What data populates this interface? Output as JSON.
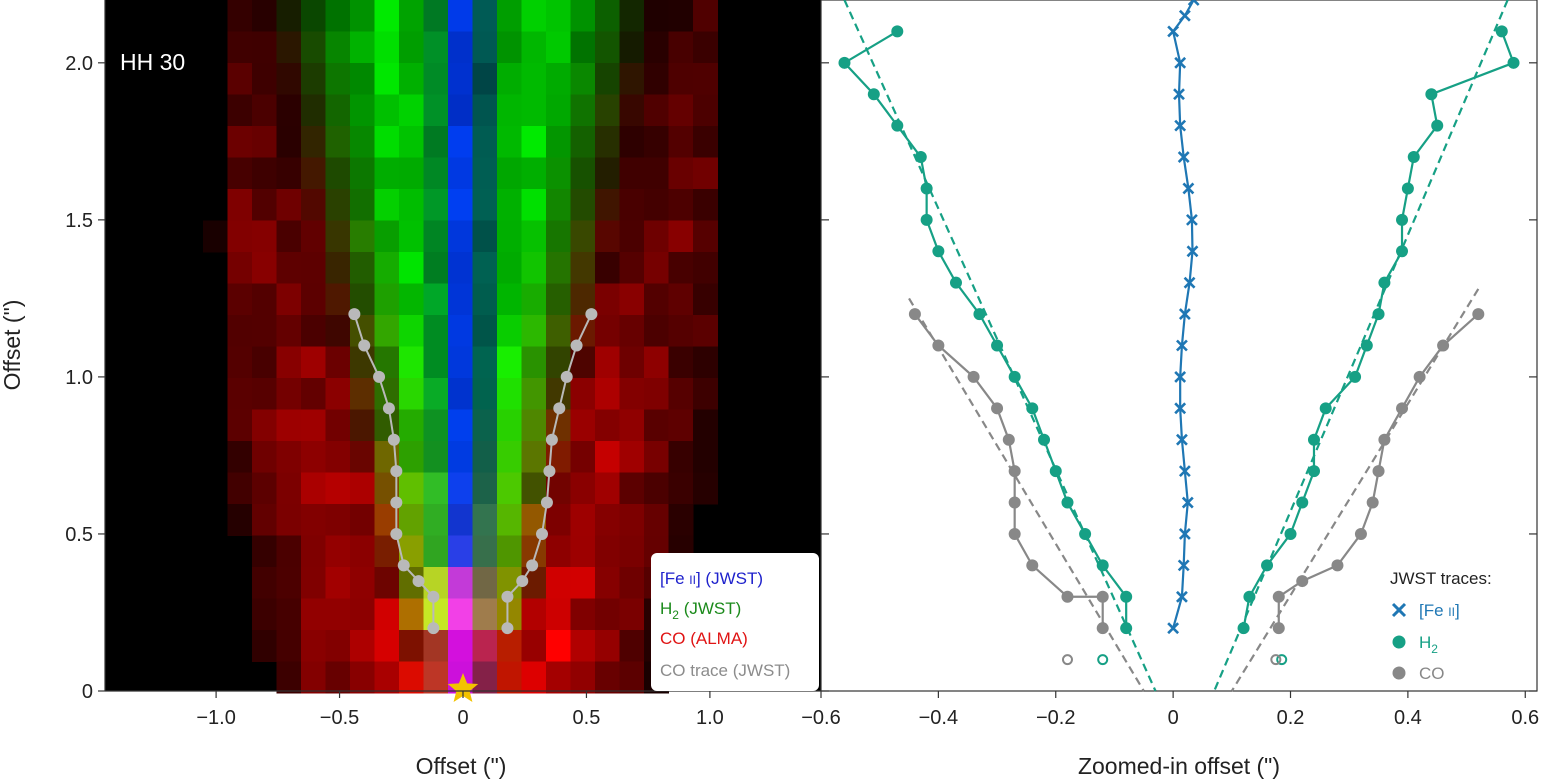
{
  "chart_data": [
    {
      "type": "heatmap",
      "panel": "left",
      "title": "HH 30",
      "xlabel": "Offset (\")",
      "ylabel": "Offset (\")",
      "xlim": [
        -1.45,
        1.45
      ],
      "ylim": [
        0,
        2.2
      ],
      "xticks": [
        -1.0,
        -0.5,
        0,
        0.5,
        1.0
      ],
      "xtick_labels": [
        "−1.0",
        "−0.5",
        "0",
        "0.5",
        "1.0"
      ],
      "yticks": [
        0,
        0.5,
        1.0,
        1.5,
        2.0
      ],
      "ytick_labels": [
        "0",
        "0.5",
        "1.0",
        "1.5",
        "2.0"
      ],
      "legend": {
        "placement": "bottom-right",
        "entries": [
          {
            "label": "[Fe ii] (JWST)",
            "color": "#1f22cc"
          },
          {
            "label": "H2 (JWST)",
            "color": "#1b8a1b"
          },
          {
            "label": "CO (ALMA)",
            "color": "#e01414"
          },
          {
            "label": "CO trace (JWST)",
            "color": "#8c8c8c"
          }
        ]
      },
      "series": [
        {
          "name": "CO trace (JWST)",
          "color": "#b9b9b9",
          "left_points": [
            [
              -0.44,
              1.2
            ],
            [
              -0.4,
              1.1
            ],
            [
              -0.34,
              1.0
            ],
            [
              -0.3,
              0.9
            ],
            [
              -0.28,
              0.8
            ],
            [
              -0.27,
              0.7
            ],
            [
              -0.27,
              0.6
            ],
            [
              -0.27,
              0.5
            ],
            [
              -0.24,
              0.4
            ],
            [
              -0.18,
              0.35
            ],
            [
              -0.12,
              0.3
            ],
            [
              -0.12,
              0.2
            ]
          ],
          "right_points": [
            [
              0.52,
              1.2
            ],
            [
              0.46,
              1.1
            ],
            [
              0.42,
              1.0
            ],
            [
              0.39,
              0.9
            ],
            [
              0.36,
              0.8
            ],
            [
              0.35,
              0.7
            ],
            [
              0.34,
              0.6
            ],
            [
              0.32,
              0.5
            ],
            [
              0.28,
              0.4
            ],
            [
              0.24,
              0.35
            ],
            [
              0.18,
              0.3
            ],
            [
              0.18,
              0.2
            ]
          ]
        }
      ],
      "star_marker": {
        "x": 0,
        "y": 0,
        "color": "#f2c200"
      }
    },
    {
      "type": "scatter",
      "panel": "right",
      "xlabel": "Zoomed-in offset (\")",
      "xlim": [
        -0.6,
        0.62
      ],
      "ylim": [
        0,
        2.2
      ],
      "xticks": [
        -0.6,
        -0.4,
        -0.2,
        0,
        0.2,
        0.4,
        0.6
      ],
      "xtick_labels": [
        "−0.6",
        "−0.4",
        "−0.2",
        "0",
        "0.2",
        "0.4",
        "0.6"
      ],
      "legend": {
        "title": "JWST traces:",
        "placement": "bottom-right",
        "entries": [
          {
            "label": "[Fe ii]",
            "marker": "x",
            "color": "#1f77b4"
          },
          {
            "label": "H2",
            "marker": "o",
            "color": "#16a085"
          },
          {
            "label": "CO",
            "marker": "o",
            "color": "#888888"
          }
        ]
      },
      "series": [
        {
          "name": "[Fe ii]",
          "color": "#1f77b4",
          "marker": "x",
          "points": [
            [
              0,
              0.2
            ],
            [
              0.015,
              0.3
            ],
            [
              0.018,
              0.4
            ],
            [
              0.02,
              0.5
            ],
            [
              0.025,
              0.6
            ],
            [
              0.02,
              0.7
            ],
            [
              0.015,
              0.8
            ],
            [
              0.012,
              0.9
            ],
            [
              0.012,
              1.0
            ],
            [
              0.015,
              1.1
            ],
            [
              0.02,
              1.2
            ],
            [
              0.028,
              1.3
            ],
            [
              0.033,
              1.4
            ],
            [
              0.032,
              1.5
            ],
            [
              0.026,
              1.6
            ],
            [
              0.018,
              1.7
            ],
            [
              0.012,
              1.8
            ],
            [
              0.01,
              1.9
            ],
            [
              0.012,
              2.0
            ],
            [
              0.0,
              2.1
            ],
            [
              0.02,
              2.15
            ],
            [
              0.035,
              2.2
            ]
          ]
        },
        {
          "name": "H2",
          "color": "#16a085",
          "marker": "o",
          "left_points": [
            [
              -0.47,
              2.1
            ],
            [
              -0.56,
              2.0
            ],
            [
              -0.51,
              1.9
            ],
            [
              -0.47,
              1.8
            ],
            [
              -0.43,
              1.7
            ],
            [
              -0.42,
              1.6
            ],
            [
              -0.42,
              1.5
            ],
            [
              -0.4,
              1.4
            ],
            [
              -0.37,
              1.3
            ],
            [
              -0.33,
              1.2
            ],
            [
              -0.3,
              1.1
            ],
            [
              -0.27,
              1.0
            ],
            [
              -0.24,
              0.9
            ],
            [
              -0.22,
              0.8
            ],
            [
              -0.2,
              0.7
            ],
            [
              -0.18,
              0.6
            ],
            [
              -0.15,
              0.5
            ],
            [
              -0.12,
              0.4
            ],
            [
              -0.08,
              0.3
            ],
            [
              -0.08,
              0.2
            ]
          ],
          "right_points": [
            [
              0.56,
              2.1
            ],
            [
              0.58,
              2.0
            ],
            [
              0.44,
              1.9
            ],
            [
              0.45,
              1.8
            ],
            [
              0.41,
              1.7
            ],
            [
              0.4,
              1.6
            ],
            [
              0.39,
              1.5
            ],
            [
              0.39,
              1.4
            ],
            [
              0.36,
              1.3
            ],
            [
              0.35,
              1.2
            ],
            [
              0.33,
              1.1
            ],
            [
              0.31,
              1.0
            ],
            [
              0.26,
              0.9
            ],
            [
              0.24,
              0.8
            ],
            [
              0.24,
              0.7
            ],
            [
              0.22,
              0.6
            ],
            [
              0.2,
              0.5
            ],
            [
              0.16,
              0.4
            ],
            [
              0.13,
              0.3
            ],
            [
              0.12,
              0.2
            ]
          ],
          "open_markers": [
            [
              -0.12,
              0.1
            ],
            [
              0.185,
              0.1
            ]
          ],
          "fits": [
            [
              [
                -0.56,
                2.2
              ],
              [
                -0.03,
                0.0
              ]
            ],
            [
              [
                0.57,
                2.2
              ],
              [
                0.07,
                0.0
              ]
            ]
          ]
        },
        {
          "name": "CO",
          "color": "#888888",
          "marker": "o",
          "left_points": [
            [
              -0.44,
              1.2
            ],
            [
              -0.4,
              1.1
            ],
            [
              -0.34,
              1.0
            ],
            [
              -0.3,
              0.9
            ],
            [
              -0.28,
              0.8
            ],
            [
              -0.27,
              0.7
            ],
            [
              -0.27,
              0.6
            ],
            [
              -0.27,
              0.5
            ],
            [
              -0.24,
              0.4
            ],
            [
              -0.18,
              0.3
            ],
            [
              -0.12,
              0.3
            ],
            [
              -0.12,
              0.2
            ]
          ],
          "right_points": [
            [
              0.52,
              1.2
            ],
            [
              0.46,
              1.1
            ],
            [
              0.42,
              1.0
            ],
            [
              0.39,
              0.9
            ],
            [
              0.36,
              0.8
            ],
            [
              0.35,
              0.7
            ],
            [
              0.34,
              0.6
            ],
            [
              0.32,
              0.5
            ],
            [
              0.28,
              0.4
            ],
            [
              0.22,
              0.35
            ],
            [
              0.18,
              0.3
            ],
            [
              0.18,
              0.2
            ]
          ],
          "open_markers": [
            [
              -0.18,
              0.1
            ],
            [
              0.175,
              0.1
            ]
          ],
          "fits": [
            [
              [
                -0.45,
                1.25
              ],
              [
                -0.05,
                0.0
              ]
            ],
            [
              [
                0.52,
                1.28
              ],
              [
                0.1,
                0.0
              ]
            ]
          ]
        }
      ]
    }
  ]
}
